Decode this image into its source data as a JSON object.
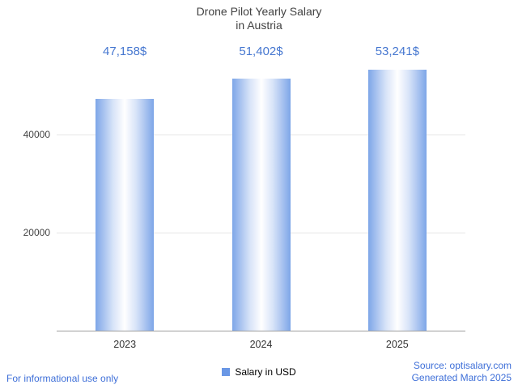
{
  "title": {
    "line1": "Drone Pilot Yearly Salary",
    "line2": "in Austria"
  },
  "chart_data": {
    "type": "bar",
    "title": "Drone Pilot Yearly Salary in Austria",
    "categories": [
      "2023",
      "2024",
      "2025"
    ],
    "values": [
      47158,
      51402,
      53241
    ],
    "value_labels": [
      "47,158$",
      "51,402$",
      "53,241$"
    ],
    "xlabel": "",
    "ylabel": "",
    "ylim": [
      0,
      55000
    ],
    "yticks": [
      20000,
      40000
    ],
    "ytick_labels": [
      "20000",
      "40000"
    ],
    "grid": true,
    "legend_position": "bottom",
    "legend_label": "Salary in USD",
    "series_color": "#6a97e5",
    "bar_edge_color": "#7ea6e8",
    "bar_mid_color": "#d7e3f8",
    "bar_center_color": "#ffffff",
    "value_label_color": "#4677d0"
  },
  "legend": {
    "label": "Salary in USD"
  },
  "footer": {
    "left_note": "For informational use only",
    "source_line1": "Source: optisalary.com",
    "source_line2": "Generated March 2025",
    "link_color": "#3e6fd8"
  }
}
